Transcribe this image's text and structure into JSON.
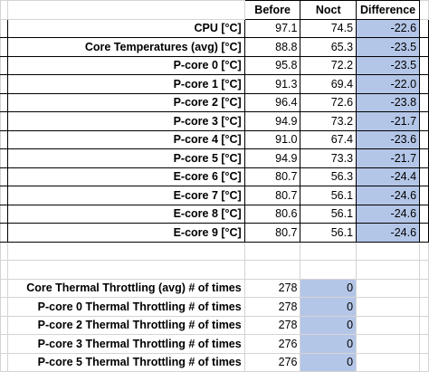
{
  "headers": {
    "before": "Before",
    "noct": "Noct",
    "difference": "Difference"
  },
  "temps": [
    {
      "label": "CPU [°C]",
      "before": "97.1",
      "noct": "74.5",
      "diff": "-22.6"
    },
    {
      "label": "Core Temperatures (avg) [°C]",
      "before": "88.8",
      "noct": "65.3",
      "diff": "-23.5"
    },
    {
      "label": "P-core 0 [°C]",
      "before": "95.8",
      "noct": "72.2",
      "diff": "-23.5"
    },
    {
      "label": "P-core 1 [°C]",
      "before": "91.3",
      "noct": "69.4",
      "diff": "-22.0"
    },
    {
      "label": "P-core 2 [°C]",
      "before": "96.4",
      "noct": "72.6",
      "diff": "-23.8"
    },
    {
      "label": "P-core 3 [°C]",
      "before": "94.9",
      "noct": "73.2",
      "diff": "-21.7"
    },
    {
      "label": "P-core 4 [°C]",
      "before": "91.0",
      "noct": "67.4",
      "diff": "-23.6"
    },
    {
      "label": "P-core 5 [°C]",
      "before": "94.9",
      "noct": "73.3",
      "diff": "-21.7"
    },
    {
      "label": "E-core 6 [°C]",
      "before": "80.7",
      "noct": "56.3",
      "diff": "-24.4"
    },
    {
      "label": "E-core 7 [°C]",
      "before": "80.7",
      "noct": "56.1",
      "diff": "-24.6"
    },
    {
      "label": "E-core 8 [°C]",
      "before": "80.6",
      "noct": "56.1",
      "diff": "-24.6"
    },
    {
      "label": "E-core 9 [°C]",
      "before": "80.7",
      "noct": "56.1",
      "diff": "-24.6"
    }
  ],
  "throttling": [
    {
      "label": "Core Thermal Throttling (avg) # of times",
      "before": "278",
      "noct": "0"
    },
    {
      "label": "P-core 0 Thermal Throttling # of times",
      "before": "278",
      "noct": "0"
    },
    {
      "label": "P-core 2 Thermal Throttling # of times",
      "before": "278",
      "noct": "0"
    },
    {
      "label": "P-core 3 Thermal Throttling # of times",
      "before": "276",
      "noct": "0"
    },
    {
      "label": "P-core 5 Thermal Throttling # of times",
      "before": "276",
      "noct": "0"
    }
  ],
  "colors": {
    "highlight": "#b4c6e7",
    "gridline": "#d4d4d4"
  }
}
